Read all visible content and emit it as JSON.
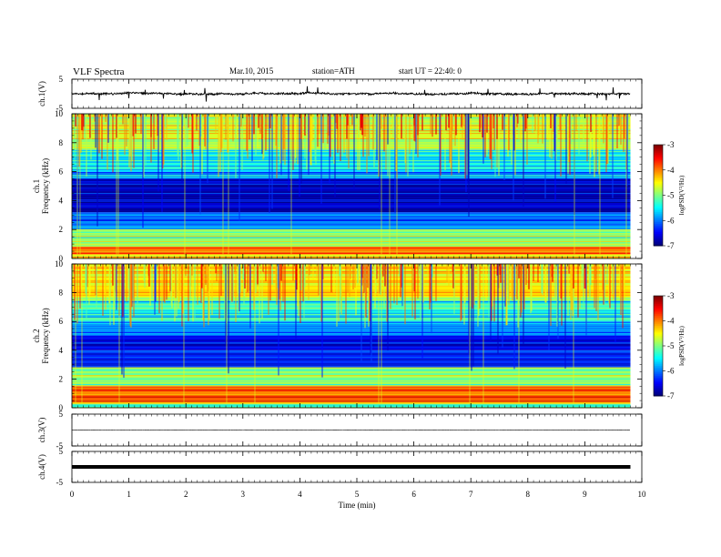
{
  "header": {
    "title": "VLF  Spectra",
    "date": "Mar.10, 2015",
    "station": "station=ATH",
    "start_time": "start  UT  =   22:40: 0"
  },
  "chart_data": [
    {
      "type": "line",
      "id": "ch1-waveform",
      "ylabel": "ch.1(V)",
      "ylim": [
        -5,
        5
      ],
      "y_ticks": [
        "5",
        "-5"
      ],
      "x_range_min": [
        0,
        9.8
      ],
      "baseline": 0,
      "approx_amplitude": 0.4
    },
    {
      "type": "heatmap",
      "id": "ch1-spectrogram",
      "ylabel": "ch.1\nFrequency  (kHz)",
      "ylabel_lines": [
        "ch.1",
        "Frequency  (kHz)"
      ],
      "ylim": [
        0,
        10
      ],
      "y_ticks": [
        "10",
        "8",
        "6",
        "4",
        "2",
        "0"
      ],
      "x_range_min": [
        0,
        9.8
      ],
      "bands_khz": [
        {
          "from": 0,
          "to": 0.3,
          "level": -4.5
        },
        {
          "from": 0.3,
          "to": 0.8,
          "level": -3.8
        },
        {
          "from": 0.8,
          "to": 2.0,
          "level": -5.0
        },
        {
          "from": 2.0,
          "to": 3.2,
          "level": -6.1
        },
        {
          "from": 3.2,
          "to": 5.5,
          "level": -6.8
        },
        {
          "from": 5.5,
          "to": 6.0,
          "level": -6.0
        },
        {
          "from": 6.0,
          "to": 7.5,
          "level": -5.5
        },
        {
          "from": 7.5,
          "to": 10,
          "level": -4.7
        }
      ],
      "colorbar": {
        "label": "logPSD(V²/Hz)",
        "ticks": [
          "-3",
          "-4",
          "-5",
          "-6",
          "-7"
        ],
        "range": [
          -7,
          -3
        ]
      }
    },
    {
      "type": "heatmap",
      "id": "ch2-spectrogram",
      "ylabel": "ch.2\nFrequency  (kHz)",
      "ylabel_lines": [
        "ch.2",
        "Frequency  (kHz)"
      ],
      "ylim": [
        0,
        10
      ],
      "y_ticks": [
        "10",
        "8",
        "6",
        "4",
        "2",
        "0"
      ],
      "x_range_min": [
        0,
        9.8
      ],
      "bands_khz": [
        {
          "from": 0,
          "to": 0.3,
          "level": -5.2
        },
        {
          "from": 0.3,
          "to": 1.5,
          "level": -3.9
        },
        {
          "from": 1.5,
          "to": 2.8,
          "level": -5.0
        },
        {
          "from": 2.8,
          "to": 4.0,
          "level": -6.3
        },
        {
          "from": 4.0,
          "to": 5.0,
          "level": -6.6
        },
        {
          "from": 5.0,
          "to": 6.0,
          "level": -6.0
        },
        {
          "from": 6.0,
          "to": 7.5,
          "level": -5.4
        },
        {
          "from": 7.5,
          "to": 10,
          "level": -4.5
        }
      ],
      "colorbar": {
        "label": "logPSD(V²/Hz)",
        "ticks": [
          "-3",
          "-4",
          "-5",
          "-6",
          "-7"
        ],
        "range": [
          -7,
          -3
        ]
      }
    },
    {
      "type": "line",
      "id": "ch3-waveform",
      "ylabel": "ch.3(V)",
      "ylim": [
        -5,
        5
      ],
      "y_ticks": [
        "5",
        "-5"
      ],
      "x_range_min": [
        0,
        9.8
      ],
      "baseline": 0,
      "approx_amplitude": 0.05
    },
    {
      "type": "line",
      "id": "ch4-waveform",
      "ylabel": "ch.4(V)",
      "ylim": [
        -5,
        5
      ],
      "y_ticks": [
        "5",
        "-5"
      ],
      "x_range_min": [
        0,
        9.8
      ],
      "baseline": 0,
      "approx_amplitude": 0.2
    }
  ],
  "x_axis": {
    "label": "Time  (min)",
    "ticks": [
      "0",
      "1",
      "2",
      "3",
      "4",
      "5",
      "6",
      "7",
      "8",
      "9",
      "10"
    ],
    "xlim": [
      0,
      10
    ]
  }
}
